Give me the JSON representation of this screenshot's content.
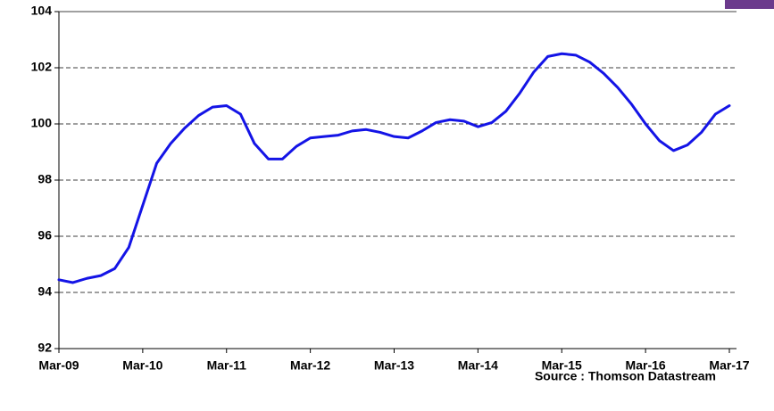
{
  "chart_data": {
    "type": "line",
    "categories": [
      "Mar-09",
      null,
      null,
      null,
      null,
      null,
      "Mar-10",
      null,
      null,
      null,
      null,
      null,
      "Mar-11",
      null,
      null,
      null,
      null,
      null,
      "Mar-12",
      null,
      null,
      null,
      null,
      null,
      "Mar-13",
      null,
      null,
      null,
      null,
      null,
      "Mar-14",
      null,
      null,
      null,
      null,
      null,
      "Mar-15",
      null,
      null,
      null,
      null,
      null,
      "Mar-16",
      null,
      null,
      null,
      null,
      null,
      "Mar-17"
    ],
    "series": [
      {
        "color": "#1414e6",
        "values": [
          94.45,
          94.35,
          94.5,
          94.6,
          94.85,
          95.6,
          97.1,
          98.6,
          99.3,
          99.85,
          100.3,
          100.6,
          100.65,
          100.35,
          99.3,
          98.75,
          98.75,
          99.2,
          99.5,
          99.55,
          99.6,
          99.75,
          99.8,
          99.7,
          99.55,
          99.5,
          99.75,
          100.05,
          100.15,
          100.1,
          99.9,
          100.05,
          100.45,
          101.1,
          101.85,
          102.4,
          102.5,
          102.45,
          102.2,
          101.8,
          101.3,
          100.7,
          100.0,
          99.4,
          99.05,
          99.25,
          99.7,
          100.35,
          100.65
        ]
      }
    ],
    "ylim": [
      92,
      104
    ],
    "yticks": [
      92,
      94,
      96,
      98,
      100,
      102,
      104
    ],
    "grid": true,
    "annotation": "Source : Thomson Datastream"
  }
}
